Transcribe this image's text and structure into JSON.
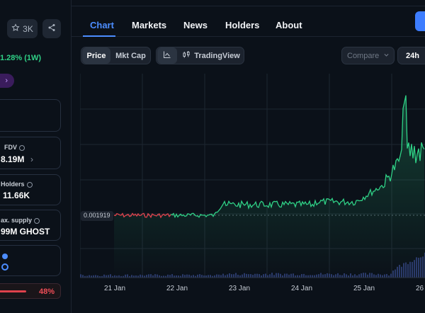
{
  "header": {
    "favorites_count": "3K",
    "tabs": [
      "Chart",
      "Markets",
      "News",
      "Holders",
      "About"
    ]
  },
  "sidebar": {
    "change": "1.28% (1W)",
    "purple_chevron": "›",
    "fdv": {
      "label": "FDV",
      "value": "8.19M"
    },
    "holders": {
      "label": "Holders",
      "value": "11.66K"
    },
    "max_supply": {
      "label": "ax. supply",
      "value": "99M GHOST"
    },
    "bottom_percent": "48%"
  },
  "toolbar": {
    "price_label": "Price",
    "mktcap_label": "Mkt Cap",
    "tradingview_label": "TradingView",
    "compare_label": "Compare",
    "range_label": "24h"
  },
  "chart_data": {
    "type": "line",
    "reference_price": "0.001919",
    "x_tick_labels": [
      "21 Jan",
      "22 Jan",
      "23 Jan",
      "24 Jan",
      "25 Jan",
      "26"
    ],
    "colors": {
      "up": "#2fd186",
      "down": "#e0424c",
      "grid": "#1e2631"
    },
    "has_volume_bars": true,
    "grid": true
  }
}
